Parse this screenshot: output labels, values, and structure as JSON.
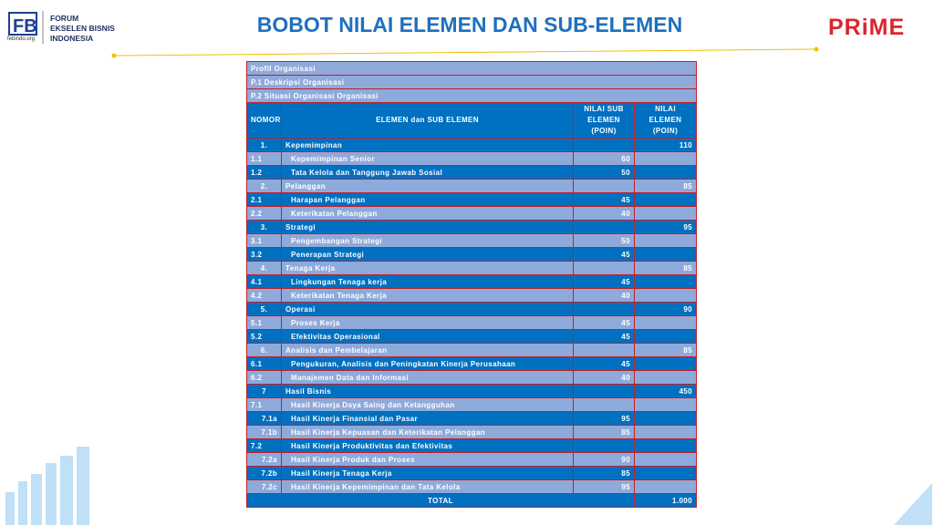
{
  "header": {
    "logo_lines": [
      "FORUM",
      "EKSELEN BISNIS",
      "INDONESIA"
    ],
    "logo_site": "febindo.org",
    "title": "BOBOT NILAI ELEMEN DAN SUB-ELEMEN",
    "brand": "PRiME"
  },
  "table": {
    "profile": [
      "Profil Organisasi",
      "P.1  Deskripsi Organisasi",
      "P.2  Situasi Organisasi Organisasi"
    ],
    "columns": [
      "NOMOR",
      "ELEMEN dan SUB ELEMEN",
      "NILAI SUB ELEMEN (POIN)",
      "NILAI ELEMEN (POIN)"
    ],
    "rows": [
      {
        "no": "1.",
        "name": "Kepemimpinan",
        "elemen": 110
      },
      {
        "no": "1.1",
        "name": "Kepemimpinan Senior",
        "sub": 60
      },
      {
        "no": "1.2",
        "name": "Tata Kelola dan Tanggung Jawab Sosial",
        "sub": 50
      },
      {
        "no": "2.",
        "name": "Pelanggan",
        "elemen": 85
      },
      {
        "no": "2.1",
        "name": "Harapan Pelanggan",
        "sub": 45
      },
      {
        "no": "2.2",
        "name": "Keterikatan Pelanggan",
        "sub": 40
      },
      {
        "no": "3.",
        "name": "Strategi",
        "elemen": 95
      },
      {
        "no": "3.1",
        "name": "Pengembangan Strategi",
        "sub": 50
      },
      {
        "no": "3.2",
        "name": "Penerapan Strategi",
        "sub": 45
      },
      {
        "no": "4.",
        "name": "Tenaga Kerja",
        "elemen": 85
      },
      {
        "no": "4.1",
        "name": "Lingkungan Tenaga kerja",
        "sub": 45
      },
      {
        "no": "4.2",
        "name": "Keterikatan Tenaga Kerja",
        "sub": 40
      },
      {
        "no": "5.",
        "name": "Operasi",
        "elemen": 90
      },
      {
        "no": "5.1",
        "name": "Proses Kerja",
        "sub": 45
      },
      {
        "no": "5.2",
        "name": "Efektivitas Operasional",
        "sub": 45
      },
      {
        "no": "6.",
        "name": "Analisis dan Pembelajaran",
        "elemen": 85
      },
      {
        "no": "6.1",
        "name": "Pengukuran, Analisis dan Peningkatan Kinerja Perusahaan",
        "sub": 45
      },
      {
        "no": "6.2",
        "name": "Manajemen Data dan Informasi",
        "sub": 40
      },
      {
        "no": "7",
        "name": "Hasil Bisnis",
        "elemen": 450
      },
      {
        "no": "7.1",
        "name": "Hasil Kinerja Daya Saing dan Ketangguhan"
      },
      {
        "no": "7.1a",
        "name": "Hasil Kinerja Finansial dan Pasar",
        "sub": 95
      },
      {
        "no": "7.1b",
        "name": "Hasil Kinerja Kepuasan dan Keterikatan Pelanggan",
        "sub": 85
      },
      {
        "no": "7.2",
        "name": "Hasil Kinerja Produktivitas dan Efektivitas"
      },
      {
        "no": "7.2a",
        "name": "Hasil Kinerja Produk dan Proses",
        "sub": 90
      },
      {
        "no": "7.2b",
        "name": "Hasil Kinerja Tenaga Kerja",
        "sub": 85
      },
      {
        "no": "7.2c",
        "name": "Hasil Kinerja Kepemimpinan dan Tata Kelola",
        "sub": 95
      }
    ],
    "total_label": "TOTAL",
    "total": "1.000"
  }
}
